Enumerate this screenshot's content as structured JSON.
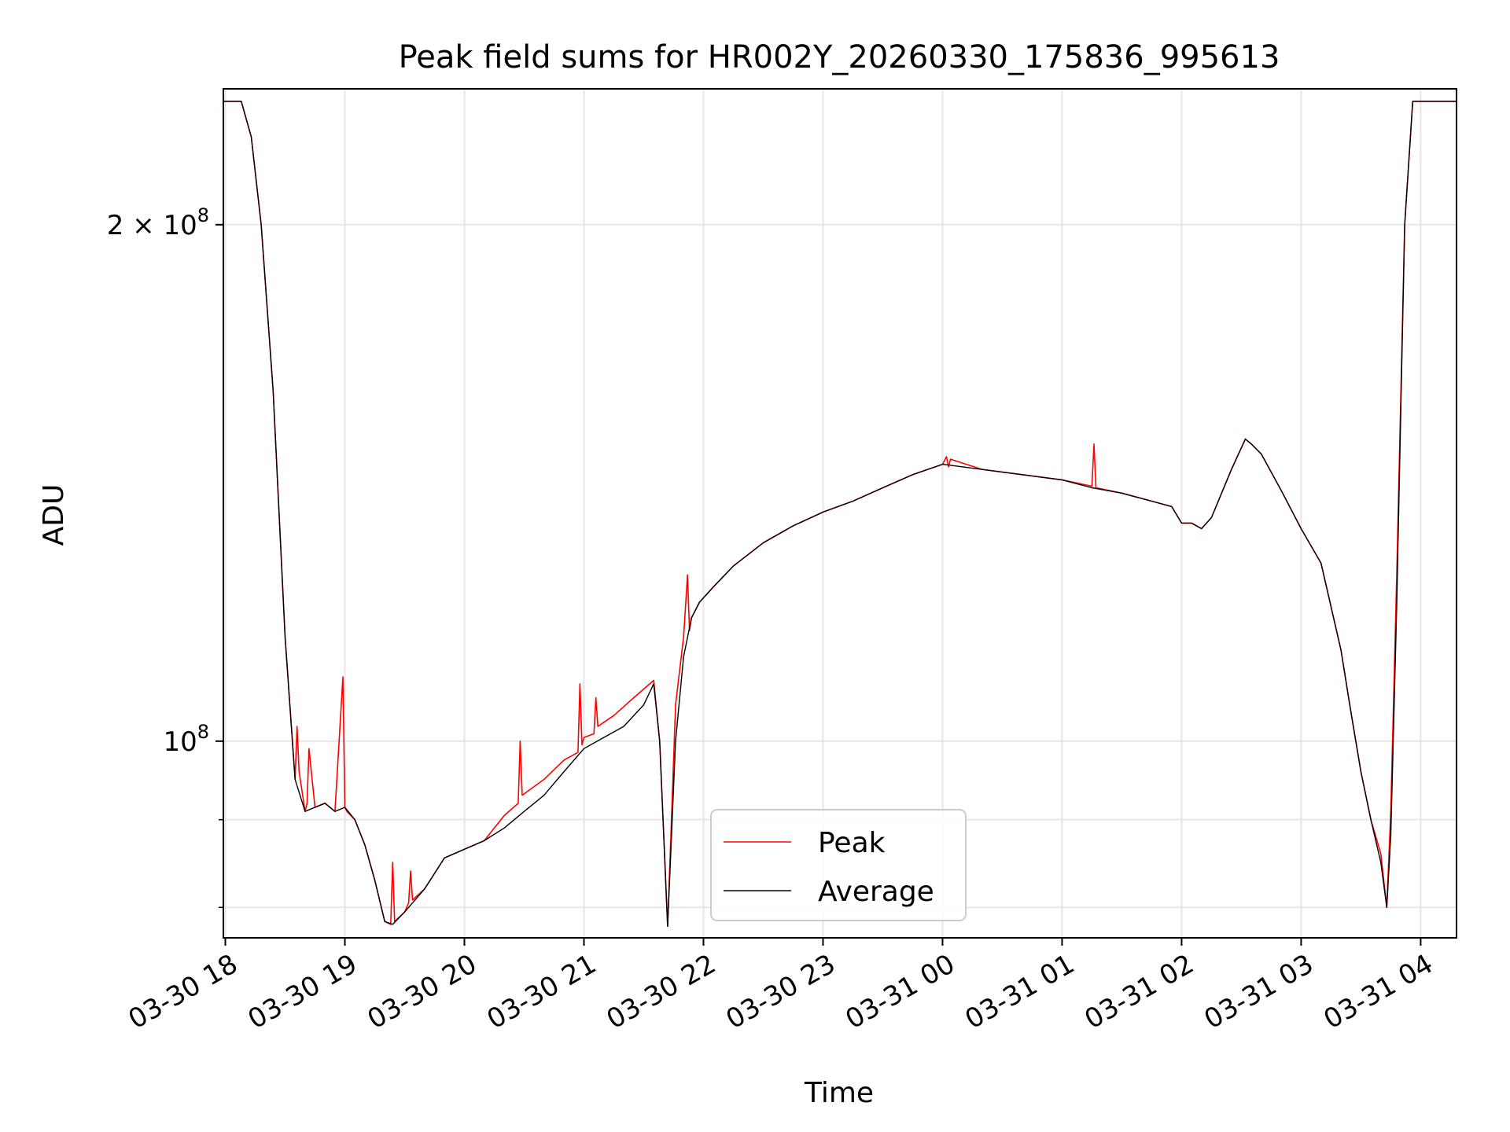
{
  "chart_data": {
    "type": "line",
    "title": "Peak field sums for HR002Y_20260330_175836_995613",
    "xlabel": "Time",
    "ylabel": "ADU",
    "yscale": "log",
    "grid": true,
    "legend_position": "lower-center",
    "xlim": [
      "2026-03-30 17:59",
      "2026-03-31 04:18"
    ],
    "ylim": [
      76800000,
      240000000
    ],
    "x_ticks": [
      {
        "value": "2026-03-30 18:00",
        "label": "03-30 18"
      },
      {
        "value": "2026-03-30 19:00",
        "label": "03-30 19"
      },
      {
        "value": "2026-03-30 20:00",
        "label": "03-30 20"
      },
      {
        "value": "2026-03-30 21:00",
        "label": "03-30 21"
      },
      {
        "value": "2026-03-30 22:00",
        "label": "03-30 22"
      },
      {
        "value": "2026-03-30 23:00",
        "label": "03-30 23"
      },
      {
        "value": "2026-03-31 00:00",
        "label": "03-31 00"
      },
      {
        "value": "2026-03-31 01:00",
        "label": "03-31 01"
      },
      {
        "value": "2026-03-31 02:00",
        "label": "03-31 02"
      },
      {
        "value": "2026-03-31 03:00",
        "label": "03-31 03"
      },
      {
        "value": "2026-03-31 04:00",
        "label": "03-31 04"
      }
    ],
    "y_major_ticks": [
      {
        "value": 100000000,
        "base": "10",
        "exp": "8",
        "coef": ""
      },
      {
        "value": 200000000,
        "base": "10",
        "exp": "8",
        "coef": "2 × "
      }
    ],
    "y_minor_ticks": [
      80000000,
      90000000
    ],
    "series": [
      {
        "name": "Peak",
        "color": "#ff0000",
        "x": [
          "2026-03-30 17:59",
          "2026-03-30 18:08",
          "2026-03-30 18:13",
          "2026-03-30 18:18",
          "2026-03-30 18:24",
          "2026-03-30 18:30",
          "2026-03-30 18:35",
          "2026-03-30 18:36",
          "2026-03-30 18:37",
          "2026-03-30 18:40",
          "2026-03-30 18:41",
          "2026-03-30 18:42",
          "2026-03-30 18:45",
          "2026-03-30 18:50",
          "2026-03-30 18:55",
          "2026-03-30 18:59",
          "2026-03-30 19:00",
          "2026-03-30 19:01",
          "2026-03-30 19:05",
          "2026-03-30 19:10",
          "2026-03-30 19:15",
          "2026-03-30 19:20",
          "2026-03-30 19:23",
          "2026-03-30 19:24",
          "2026-03-30 19:25",
          "2026-03-30 19:30",
          "2026-03-30 19:32",
          "2026-03-30 19:33",
          "2026-03-30 19:34",
          "2026-03-30 19:40",
          "2026-03-30 19:50",
          "2026-03-30 19:55",
          "2026-03-30 20:00",
          "2026-03-30 20:10",
          "2026-03-30 20:15",
          "2026-03-30 20:20",
          "2026-03-30 20:27",
          "2026-03-30 20:28",
          "2026-03-30 20:29",
          "2026-03-30 20:40",
          "2026-03-30 20:50",
          "2026-03-30 20:57",
          "2026-03-30 20:58",
          "2026-03-30 20:59",
          "2026-03-30 21:00",
          "2026-03-30 21:05",
          "2026-03-30 21:06",
          "2026-03-30 21:07",
          "2026-03-30 21:15",
          "2026-03-30 21:25",
          "2026-03-30 21:35",
          "2026-03-30 21:38",
          "2026-03-30 21:42",
          "2026-03-30 21:46",
          "2026-03-30 21:50",
          "2026-03-30 21:52",
          "2026-03-30 21:53",
          "2026-03-30 21:54",
          "2026-03-30 21:58",
          "2026-03-30 22:05",
          "2026-03-30 22:15",
          "2026-03-30 22:30",
          "2026-03-30 22:45",
          "2026-03-30 23:00",
          "2026-03-30 23:15",
          "2026-03-30 23:30",
          "2026-03-30 23:45",
          "2026-03-31 00:00",
          "2026-03-31 00:02",
          "2026-03-31 00:03",
          "2026-03-31 00:04",
          "2026-03-31 00:20",
          "2026-03-31 00:40",
          "2026-03-31 01:00",
          "2026-03-31 01:15",
          "2026-03-31 01:16",
          "2026-03-31 01:17",
          "2026-03-31 01:30",
          "2026-03-31 01:45",
          "2026-03-31 01:55",
          "2026-03-31 02:00",
          "2026-03-31 02:05",
          "2026-03-31 02:10",
          "2026-03-31 02:15",
          "2026-03-31 02:25",
          "2026-03-31 02:32",
          "2026-03-31 02:35",
          "2026-03-31 02:40",
          "2026-03-31 02:50",
          "2026-03-31 03:00",
          "2026-03-31 03:10",
          "2026-03-31 03:20",
          "2026-03-31 03:25",
          "2026-03-31 03:30",
          "2026-03-31 03:35",
          "2026-03-31 03:40",
          "2026-03-31 03:43",
          "2026-03-31 03:45",
          "2026-03-31 03:48",
          "2026-03-31 03:52",
          "2026-03-31 03:56",
          "2026-03-31 04:00",
          "2026-03-31 04:04",
          "2026-03-31 04:18"
        ],
        "y": [
          236000000,
          236000000,
          225000000,
          200000000,
          160000000,
          115000000,
          95000000,
          102000000,
          96000000,
          91000000,
          92000000,
          99000000,
          91500000,
          92000000,
          91000000,
          109000000,
          91500000,
          91000000,
          90000000,
          87000000,
          83000000,
          78500000,
          78200000,
          85000000,
          78500000,
          79500000,
          80500000,
          84000000,
          80800000,
          82000000,
          85500000,
          86000000,
          86500000,
          87500000,
          89000000,
          90500000,
          92000000,
          100000000,
          93000000,
          95000000,
          97500000,
          98500000,
          108000000,
          99500000,
          100500000,
          101000000,
          106000000,
          102000000,
          103500000,
          106000000,
          108500000,
          100000000,
          78000000,
          105000000,
          115000000,
          125000000,
          116000000,
          118000000,
          120500000,
          123000000,
          126500000,
          130500000,
          133500000,
          136000000,
          138000000,
          140500000,
          143000000,
          145000000,
          146500000,
          144500000,
          146000000,
          144000000,
          143000000,
          142000000,
          140800000,
          149000000,
          140500000,
          139500000,
          138000000,
          137000000,
          134000000,
          134000000,
          133000000,
          135000000,
          144000000,
          150000000,
          149000000,
          147000000,
          140000000,
          133000000,
          127000000,
          113000000,
          104000000,
          96000000,
          90000000,
          86000000,
          80000000,
          91000000,
          125000000,
          200000000,
          236000000,
          236000000,
          236000000,
          236000000
        ]
      },
      {
        "name": "Average",
        "color": "#000000",
        "x": [
          "2026-03-30 17:59",
          "2026-03-30 18:08",
          "2026-03-30 18:13",
          "2026-03-30 18:18",
          "2026-03-30 18:24",
          "2026-03-30 18:30",
          "2026-03-30 18:35",
          "2026-03-30 18:40",
          "2026-03-30 18:45",
          "2026-03-30 18:50",
          "2026-03-30 18:55",
          "2026-03-30 19:00",
          "2026-03-30 19:05",
          "2026-03-30 19:10",
          "2026-03-30 19:15",
          "2026-03-30 19:20",
          "2026-03-30 19:24",
          "2026-03-30 19:30",
          "2026-03-30 19:40",
          "2026-03-30 19:50",
          "2026-03-30 20:00",
          "2026-03-30 20:10",
          "2026-03-30 20:20",
          "2026-03-30 20:30",
          "2026-03-30 20:40",
          "2026-03-30 20:50",
          "2026-03-30 21:00",
          "2026-03-30 21:10",
          "2026-03-30 21:20",
          "2026-03-30 21:30",
          "2026-03-30 21:35",
          "2026-03-30 21:38",
          "2026-03-30 21:42",
          "2026-03-30 21:46",
          "2026-03-30 21:50",
          "2026-03-30 21:54",
          "2026-03-30 21:58",
          "2026-03-30 22:05",
          "2026-03-30 22:15",
          "2026-03-30 22:30",
          "2026-03-30 22:45",
          "2026-03-30 23:00",
          "2026-03-30 23:15",
          "2026-03-30 23:30",
          "2026-03-30 23:45",
          "2026-03-31 00:00",
          "2026-03-31 00:20",
          "2026-03-31 00:40",
          "2026-03-31 01:00",
          "2026-03-31 01:15",
          "2026-03-31 01:30",
          "2026-03-31 01:45",
          "2026-03-31 01:55",
          "2026-03-31 02:00",
          "2026-03-31 02:05",
          "2026-03-31 02:10",
          "2026-03-31 02:15",
          "2026-03-31 02:25",
          "2026-03-31 02:32",
          "2026-03-31 02:35",
          "2026-03-31 02:40",
          "2026-03-31 02:50",
          "2026-03-31 03:00",
          "2026-03-31 03:10",
          "2026-03-31 03:20",
          "2026-03-31 03:25",
          "2026-03-31 03:30",
          "2026-03-31 03:35",
          "2026-03-31 03:40",
          "2026-03-31 03:43",
          "2026-03-31 03:45",
          "2026-03-31 03:48",
          "2026-03-31 03:52",
          "2026-03-31 03:56",
          "2026-03-31 04:00",
          "2026-03-31 04:04",
          "2026-03-31 04:18"
        ],
        "y": [
          236000000,
          236000000,
          225000000,
          200000000,
          160000000,
          115000000,
          95000000,
          91000000,
          91500000,
          92000000,
          91000000,
          91500000,
          90000000,
          87000000,
          83000000,
          78500000,
          78200000,
          79500000,
          82000000,
          85500000,
          86500000,
          87500000,
          89000000,
          91000000,
          93000000,
          96000000,
          99000000,
          100500000,
          102000000,
          105000000,
          108000000,
          100000000,
          78000000,
          100000000,
          112000000,
          118000000,
          120500000,
          123000000,
          126500000,
          130500000,
          133500000,
          136000000,
          138000000,
          140500000,
          143000000,
          145000000,
          144000000,
          143000000,
          142000000,
          140500000,
          139500000,
          138000000,
          137000000,
          134000000,
          134000000,
          133000000,
          135000000,
          144000000,
          150000000,
          149000000,
          147000000,
          140000000,
          133000000,
          127000000,
          113000000,
          104000000,
          96000000,
          90000000,
          85000000,
          80000000,
          88000000,
          120000000,
          200000000,
          236000000,
          236000000,
          236000000,
          236000000
        ]
      }
    ]
  }
}
